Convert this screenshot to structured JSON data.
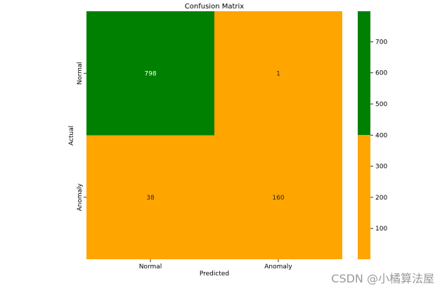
{
  "chart_data": {
    "type": "heatmap",
    "title": "Confusion Matrix",
    "xlabel": "Predicted",
    "ylabel": "Actual",
    "x_categories": [
      "Normal",
      "Anomaly"
    ],
    "y_categories": [
      "Normal",
      "Anomaly"
    ],
    "values": [
      [
        798,
        1
      ],
      [
        38,
        160
      ]
    ],
    "colormap": {
      "type": "threshold",
      "threshold": 400,
      "low_color": "#FFA500",
      "high_color": "#008000"
    },
    "colorbar": {
      "range": [
        1,
        798
      ],
      "ticks": [
        100,
        200,
        300,
        400,
        500,
        600,
        700
      ]
    },
    "text_colors": {
      "on_high": "#ffffff",
      "on_low": "#262626"
    }
  },
  "watermark": "CSDN @小橘算法屋"
}
